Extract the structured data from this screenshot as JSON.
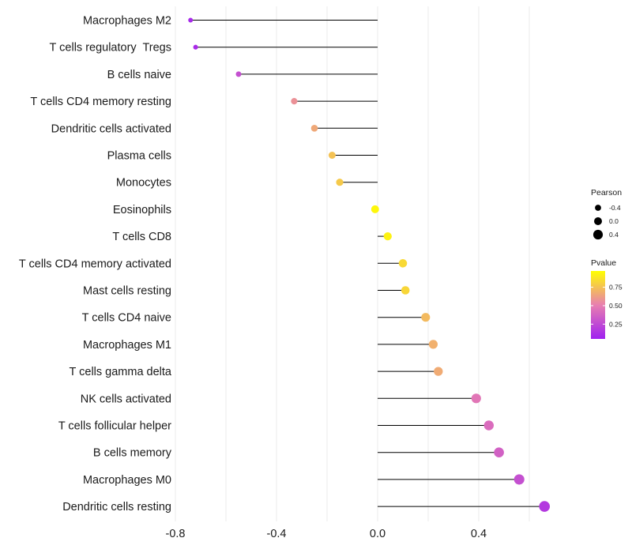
{
  "chart_data": {
    "type": "lollipop",
    "title": "",
    "xlabel": "",
    "ylabel": "",
    "xlim": [
      -0.8,
      0.8
    ],
    "x_ticks": [
      -0.8,
      -0.4,
      0.0,
      0.4
    ],
    "x_tick_labels": [
      "-0.8",
      "-0.4",
      "0.0",
      "0.4"
    ],
    "categories": [
      "Macrophages M2",
      "T cells regulatory  Tregs",
      "B cells naive",
      "T cells CD4 memory resting",
      "Dendritic cells activated",
      "Plasma cells",
      "Monocytes",
      "Eosinophils",
      "T cells CD8",
      "T cells CD4 memory activated",
      "Mast cells resting",
      "T cells CD4 naive",
      "Macrophages M1",
      "T cells gamma delta",
      "NK cells activated",
      "T cells follicular helper",
      "B cells memory",
      "Macrophages M0",
      "Dendritic cells resting"
    ],
    "pearson": [
      -0.74,
      -0.72,
      -0.55,
      -0.33,
      -0.25,
      -0.18,
      -0.15,
      -0.01,
      0.04,
      0.1,
      0.11,
      0.19,
      0.22,
      0.24,
      0.39,
      0.44,
      0.48,
      0.56,
      0.66
    ],
    "pvalue": [
      0.05,
      0.06,
      0.25,
      0.57,
      0.66,
      0.76,
      0.79,
      0.97,
      0.95,
      0.85,
      0.84,
      0.73,
      0.69,
      0.67,
      0.45,
      0.4,
      0.34,
      0.25,
      0.13
    ],
    "legend": {
      "size_title": "Pearson",
      "size_labels": [
        "-0.4",
        "0.0",
        "0.4"
      ],
      "size_values": [
        -0.4,
        0.0,
        0.4
      ],
      "color_title": "Pvalue",
      "color_labels": [
        "0.75",
        "0.50",
        "0.25"
      ],
      "color_values": [
        0.75,
        0.5,
        0.25
      ],
      "color_low": "#a020f0",
      "color_mid": "#e87fb0",
      "color_high": "#ffff00",
      "position": "right"
    },
    "grid": true
  }
}
